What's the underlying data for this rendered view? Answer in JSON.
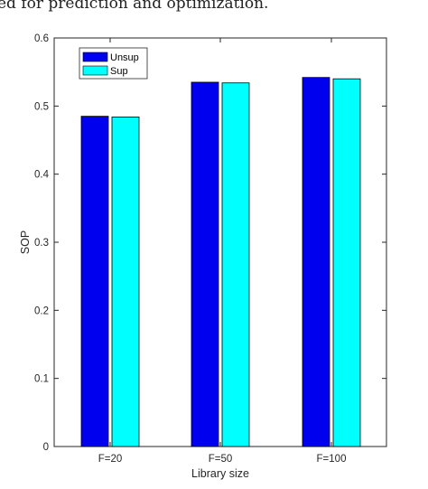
{
  "page_text": "ed for prediction and optimization.",
  "colors": {
    "unsup": "#0000ee",
    "sup": "#00ffff",
    "axis": "#262626"
  },
  "chart_data": {
    "type": "bar",
    "categories": [
      "F=20",
      "F=50",
      "F=100"
    ],
    "series": [
      {
        "name": "Unsup",
        "values": [
          0.485,
          0.535,
          0.542
        ]
      },
      {
        "name": "Sup",
        "values": [
          0.484,
          0.534,
          0.54
        ]
      }
    ],
    "xlabel": "Library size",
    "ylabel": "SOP",
    "ylim": [
      0,
      0.6
    ],
    "yticks": [
      "0",
      "0.1",
      "0.2",
      "0.3",
      "0.4",
      "0.5",
      "0.6"
    ],
    "legend_position": "top-left",
    "grid": false
  }
}
